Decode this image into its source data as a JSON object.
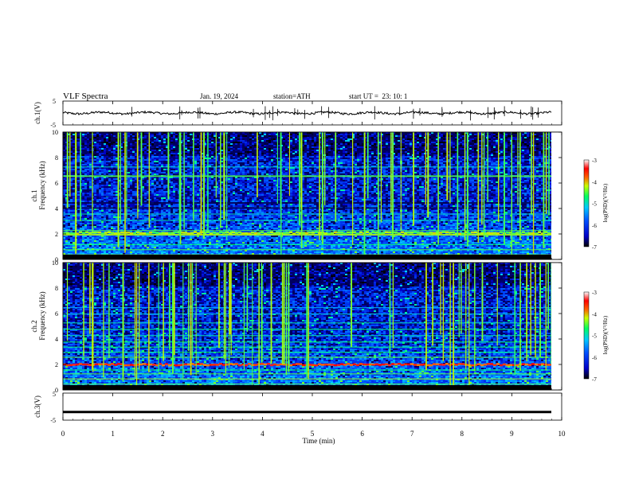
{
  "header": {
    "title": "VLF Spectra",
    "date": "Jan. 19, 2024",
    "station": "station=ATH",
    "start": "start UT =  23: 10: 1"
  },
  "chart_data": [
    {
      "type": "line",
      "panel": "ch1-waveform",
      "ylabel": "ch.1(V)",
      "ylim": [
        -5,
        5
      ],
      "yticks": [
        "5",
        "-5"
      ],
      "xlim": [
        0,
        10
      ],
      "description_values": "noisy trace near 0 V across 0–9.8 min",
      "series": [
        {
          "values_level": 0
        }
      ]
    },
    {
      "type": "heatmap",
      "panel": "ch1-spectrogram",
      "ylabel": "ch.1 Frequency (kHz)",
      "ylabel_lines": [
        "ch.1",
        "Frequency (kHz)"
      ],
      "ylim": [
        0,
        10
      ],
      "yticks": [
        "0",
        "2",
        "4",
        "6",
        "8",
        "10"
      ],
      "xlim": [
        0,
        10
      ],
      "colorbar": {
        "label": "log(PSD)(V²/Hz)",
        "range": [
          -7,
          -3
        ],
        "ticks": [
          "-3",
          "-4",
          "-5",
          "-6",
          "-7"
        ]
      }
    },
    {
      "type": "heatmap",
      "panel": "ch2-spectrogram",
      "ylabel": "ch.2 Frequency (kHz)",
      "ylabel_lines": [
        "ch.2",
        "Frequency (kHz)"
      ],
      "ylim": [
        0,
        10
      ],
      "yticks": [
        "0",
        "2",
        "4",
        "6",
        "8",
        "10"
      ],
      "xlim": [
        0,
        10
      ],
      "colorbar": {
        "label": "log(PSD)(V²/Hz)",
        "range": [
          -7,
          -3
        ],
        "ticks": [
          "-3",
          "-4",
          "-5",
          "-6",
          "-7"
        ]
      }
    },
    {
      "type": "line",
      "panel": "ch3-waveform",
      "ylabel": "ch.3(V)",
      "ylim": [
        -5,
        5
      ],
      "yticks": [
        "5",
        "-5"
      ],
      "xlim": [
        0,
        10
      ],
      "series": [
        {
          "values_level": -2
        }
      ]
    }
  ],
  "xaxis": {
    "label": "Time (min)",
    "ticks": [
      "0",
      "1",
      "2",
      "3",
      "4",
      "5",
      "6",
      "7",
      "8",
      "9",
      "10"
    ],
    "range": [
      0,
      10
    ]
  },
  "colors": {
    "spectrogram_background": "#0000a0",
    "colormap": [
      "#000000",
      "#0000c8",
      "#0050ff",
      "#00c8ff",
      "#00ff80",
      "#c0ff00",
      "#ff8000",
      "#ff0000",
      "#ffffff"
    ]
  }
}
